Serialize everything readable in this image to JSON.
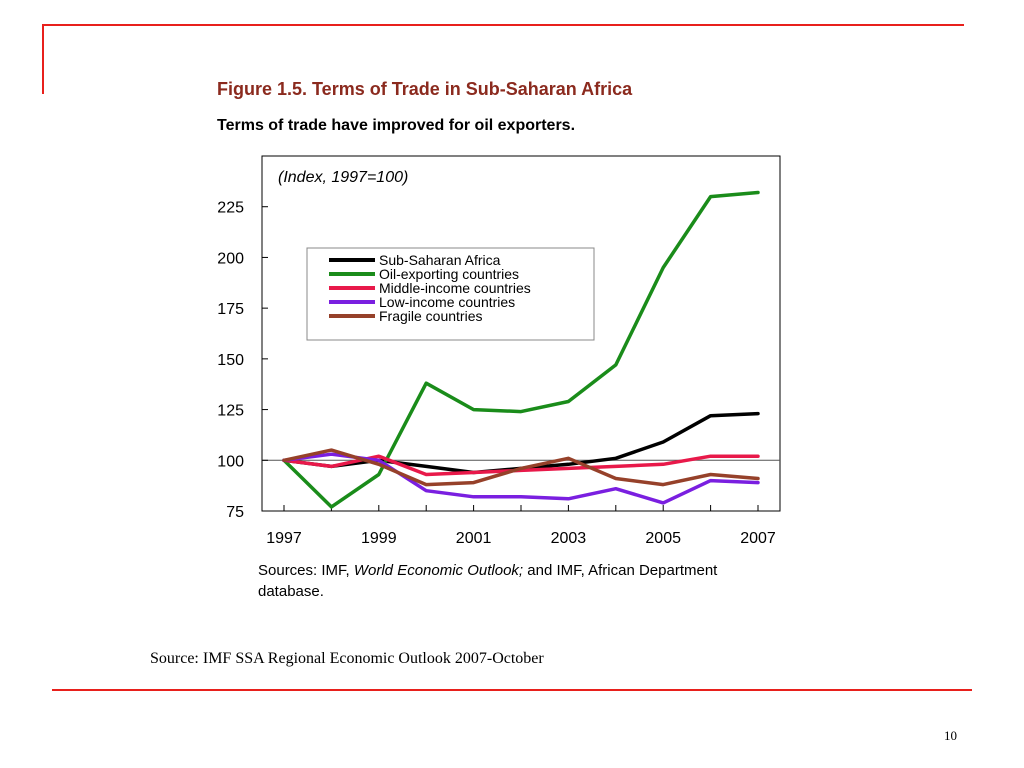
{
  "figure": {
    "title": "Figure 1.5. Terms of Trade in Sub-Saharan Africa",
    "subtitle": "Terms of trade have improved for oil exporters.",
    "sources": {
      "prefix": "Sources: IMF, ",
      "publication": "World Economic Outlook;",
      "suffix": " and IMF, African Department database."
    }
  },
  "slide_source": "Source: IMF SSA Regional Economic Outlook 2007-October",
  "page_number": "10",
  "chart_data": {
    "type": "line",
    "title": "Figure 1.5. Terms of Trade in Sub-Saharan Africa",
    "subtitle": "Terms of trade have improved for oil exporters.",
    "annotation": "(Index, 1997=100)",
    "xlabel": "",
    "ylabel": "",
    "x": [
      1997,
      1998,
      1999,
      2000,
      2001,
      2002,
      2003,
      2004,
      2005,
      2006,
      2007
    ],
    "x_tick_labels": [
      "1997",
      "1999",
      "2001",
      "2003",
      "2005",
      "2007"
    ],
    "y_ticks": [
      75,
      100,
      125,
      150,
      175,
      200,
      225
    ],
    "ylim": [
      75,
      250
    ],
    "reference_line": 100,
    "grid": false,
    "legend_position": "upper-left",
    "series": [
      {
        "name": "Sub-Saharan Africa",
        "color": "#000000",
        "values": [
          100,
          97,
          100,
          97,
          94,
          96,
          98,
          101,
          109,
          122,
          123
        ]
      },
      {
        "name": "Oil-exporting countries",
        "color": "#1a8c1a",
        "values": [
          100,
          77,
          93,
          138,
          125,
          124,
          129,
          147,
          195,
          230,
          232
        ]
      },
      {
        "name": "Middle-income countries",
        "color": "#e8194a",
        "values": [
          100,
          97,
          102,
          93,
          94,
          95,
          96,
          97,
          98,
          102,
          102
        ]
      },
      {
        "name": "Low-income countries",
        "color": "#7a1fe0",
        "values": [
          100,
          103,
          100,
          85,
          82,
          82,
          81,
          86,
          79,
          90,
          89
        ]
      },
      {
        "name": "Fragile countries",
        "color": "#96412a",
        "values": [
          100,
          105,
          98,
          88,
          89,
          96,
          101,
          91,
          88,
          93,
          91
        ]
      }
    ]
  }
}
